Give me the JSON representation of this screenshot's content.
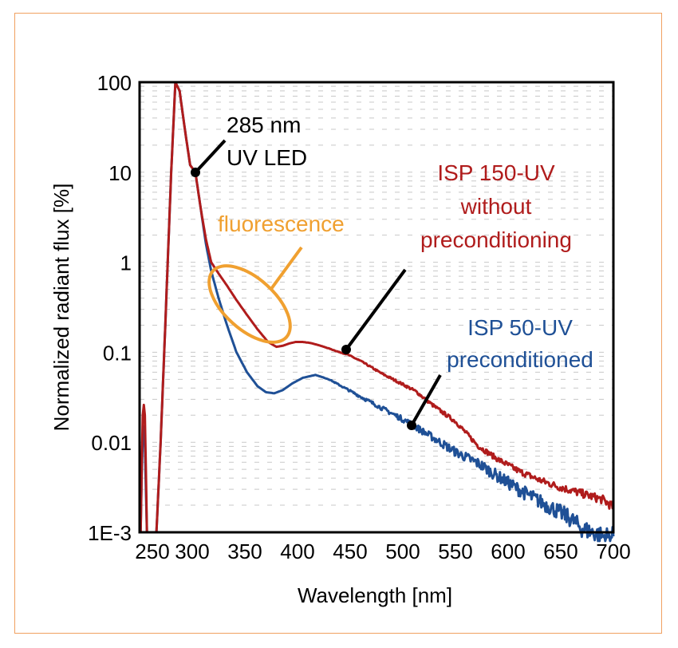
{
  "chart_data": {
    "type": "line",
    "xlabel": "Wavelength [nm]",
    "ylabel": "Normalized radiant flux [%]",
    "xlim": [
      250,
      700
    ],
    "ylim": [
      0.001,
      100
    ],
    "yscale": "log",
    "x_ticks": [
      "250",
      "300",
      "350",
      "400",
      "450",
      "500",
      "550",
      "600",
      "650",
      "700"
    ],
    "y_ticks": [
      "100",
      "10",
      "1",
      "0.1",
      "0.01",
      "1E-3"
    ],
    "grid": true,
    "series": [
      {
        "name": "ISP 150-UV without preconditioning",
        "color": "#b01c1c",
        "x": [
          251,
          252,
          253,
          254,
          255,
          256,
          257,
          258,
          262,
          266,
          270,
          275,
          280,
          284,
          288,
          293,
          298,
          303,
          308,
          313,
          318,
          325,
          333,
          342,
          352,
          362,
          372,
          380,
          386,
          392,
          398,
          405,
          412,
          420,
          430,
          440,
          447,
          460,
          480,
          500,
          512,
          530,
          550,
          572,
          590,
          610,
          630,
          648,
          670,
          690,
          700
        ],
        "y": [
          0.001,
          0.005,
          0.02,
          0.026,
          0.02,
          0.005,
          0.001,
          0.001,
          0.001,
          0.001,
          0.01,
          0.3,
          10,
          100,
          80,
          30,
          12,
          10,
          4,
          1.8,
          1.0,
          0.75,
          0.55,
          0.38,
          0.26,
          0.18,
          0.13,
          0.115,
          0.118,
          0.125,
          0.13,
          0.13,
          0.127,
          0.12,
          0.11,
          0.1,
          0.095,
          0.08,
          0.058,
          0.044,
          0.037,
          0.025,
          0.017,
          0.009,
          0.0065,
          0.0048,
          0.0038,
          0.0032,
          0.0027,
          0.0023,
          0.0019
        ]
      },
      {
        "name": "ISP 50-UV preconditioned",
        "color": "#1f5096",
        "x": [
          251,
          252,
          253,
          254,
          255,
          256,
          257,
          258,
          262,
          266,
          270,
          275,
          280,
          284,
          288,
          293,
          298,
          303,
          308,
          313,
          318,
          325,
          333,
          342,
          352,
          362,
          370,
          378,
          386,
          395,
          405,
          417,
          430,
          445,
          460,
          480,
          504,
          530,
          550,
          572,
          590,
          610,
          630,
          648,
          660,
          670,
          680,
          690,
          700
        ],
        "y": [
          0.001,
          0.004,
          0.012,
          0.015,
          0.01,
          0.003,
          0.001,
          0.001,
          0.001,
          0.001,
          0.01,
          0.3,
          10,
          100,
          80,
          30,
          12,
          10,
          4,
          1.6,
          0.8,
          0.4,
          0.2,
          0.1,
          0.06,
          0.042,
          0.036,
          0.035,
          0.038,
          0.045,
          0.052,
          0.056,
          0.05,
          0.04,
          0.032,
          0.024,
          0.017,
          0.011,
          0.0078,
          0.0058,
          0.0042,
          0.003,
          0.0022,
          0.0017,
          0.0014,
          0.0011,
          0.001,
          0.0009,
          0.0009
        ]
      }
    ],
    "annotations": {
      "led": [
        "285 nm",
        "UV LED"
      ],
      "fluorescence": "fluorescence",
      "isp150": [
        "ISP 150-UV",
        "without",
        "preconditioning"
      ],
      "isp50": [
        "ISP 50-UV",
        "preconditioned"
      ]
    },
    "colors": {
      "led": "#000000",
      "fluorescence": "#f0a030",
      "isp150": "#b01c1c",
      "isp50": "#1f5096",
      "frame": "#f0a060"
    }
  }
}
